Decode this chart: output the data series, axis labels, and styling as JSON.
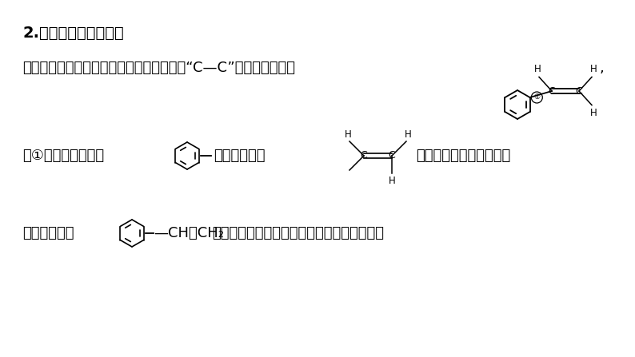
{
  "bg_color": "#ffffff",
  "text_color": "#000000",
  "title": "2.注意碳碳单键的旋转",
  "line1": "碳碳单键两端碳原子所连原子或原子团能以“C—C”为轴旋转，例如",
  "line2_a": "因①键可以旋转，故",
  "line2_b": "的平面可能和",
  "line2_c": "确定的平面重合，也可能",
  "line3_a": "不重合。因而",
  "line3_b": "—CH＝CH₂",
  "line3_c": "分子中的所有原子可能共面，也可能不共面。",
  "body_fs": 13,
  "title_fs": 14
}
